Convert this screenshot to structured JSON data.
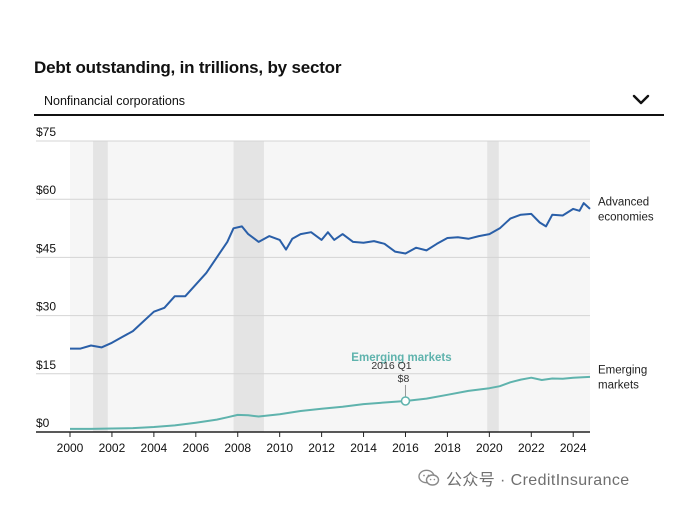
{
  "header": {
    "title": "Debt outstanding, in trillions, by sector",
    "selector_value": "Nonfinancial corporations"
  },
  "watermark": {
    "text": "公众号 · CreditInsurance"
  },
  "chart_data": {
    "type": "line",
    "title": "Debt outstanding, in trillions, by sector",
    "xlabel": "",
    "ylabel": "",
    "xlim": [
      2000,
      2024.8
    ],
    "ylim": [
      0,
      75
    ],
    "x_ticks": [
      "2000",
      "2002",
      "2004",
      "2006",
      "2008",
      "2010",
      "2012",
      "2014",
      "2016",
      "2018",
      "2020",
      "2022",
      "2024"
    ],
    "y_ticks": [
      {
        "value": 0,
        "label": "$0"
      },
      {
        "value": 15,
        "label": "$15"
      },
      {
        "value": 30,
        "label": "$30"
      },
      {
        "value": 45,
        "label": "$45"
      },
      {
        "value": 60,
        "label": "$60"
      },
      {
        "value": 75,
        "label": "$75"
      }
    ],
    "grid": true,
    "recession_bands": [
      [
        2001.1,
        2001.8
      ],
      [
        2007.8,
        2009.25
      ],
      [
        2019.9,
        2020.45
      ]
    ],
    "series": [
      {
        "name": "Advanced economies",
        "end_label": [
          "Advanced",
          "economies"
        ],
        "color": "#2a5fa8",
        "points": [
          [
            2000,
            21.5
          ],
          [
            2000.5,
            21.5
          ],
          [
            2001,
            22.3
          ],
          [
            2001.5,
            21.8
          ],
          [
            2002,
            23.0
          ],
          [
            2002.5,
            24.5
          ],
          [
            2003,
            26.0
          ],
          [
            2003.5,
            28.5
          ],
          [
            2004,
            31.0
          ],
          [
            2004.5,
            32.0
          ],
          [
            2005,
            35.0
          ],
          [
            2005.5,
            35.0
          ],
          [
            2006,
            38.0
          ],
          [
            2006.5,
            41.0
          ],
          [
            2007,
            45.0
          ],
          [
            2007.5,
            49.0
          ],
          [
            2007.8,
            52.5
          ],
          [
            2008.2,
            53.0
          ],
          [
            2008.5,
            51.0
          ],
          [
            2009,
            49.0
          ],
          [
            2009.5,
            50.5
          ],
          [
            2010,
            49.5
          ],
          [
            2010.3,
            47.0
          ],
          [
            2010.6,
            49.8
          ],
          [
            2011,
            51.0
          ],
          [
            2011.5,
            51.5
          ],
          [
            2012,
            49.5
          ],
          [
            2012.3,
            51.5
          ],
          [
            2012.6,
            49.5
          ],
          [
            2013,
            51.0
          ],
          [
            2013.5,
            49.0
          ],
          [
            2014,
            48.8
          ],
          [
            2014.5,
            49.2
          ],
          [
            2015,
            48.5
          ],
          [
            2015.5,
            46.5
          ],
          [
            2016,
            46.0
          ],
          [
            2016.5,
            47.5
          ],
          [
            2017,
            46.8
          ],
          [
            2017.5,
            48.5
          ],
          [
            2018,
            50.0
          ],
          [
            2018.5,
            50.2
          ],
          [
            2019,
            49.8
          ],
          [
            2019.5,
            50.5
          ],
          [
            2020,
            51.0
          ],
          [
            2020.5,
            52.5
          ],
          [
            2021,
            55.0
          ],
          [
            2021.5,
            56.0
          ],
          [
            2022,
            56.2
          ],
          [
            2022.4,
            54.0
          ],
          [
            2022.7,
            53.0
          ],
          [
            2023,
            56.0
          ],
          [
            2023.5,
            55.8
          ],
          [
            2024,
            57.5
          ],
          [
            2024.3,
            57.0
          ],
          [
            2024.5,
            59.0
          ],
          [
            2024.8,
            57.5
          ]
        ]
      },
      {
        "name": "Emerging markets",
        "end_label": [
          "Emerging",
          "markets"
        ],
        "inline_label": "Emerging markets",
        "color": "#5fb3ad",
        "points": [
          [
            2000,
            0.8
          ],
          [
            2001,
            0.8
          ],
          [
            2002,
            0.9
          ],
          [
            2003,
            1.0
          ],
          [
            2004,
            1.3
          ],
          [
            2005,
            1.7
          ],
          [
            2006,
            2.4
          ],
          [
            2007,
            3.2
          ],
          [
            2007.5,
            3.8
          ],
          [
            2008,
            4.4
          ],
          [
            2008.5,
            4.3
          ],
          [
            2009,
            4.0
          ],
          [
            2010,
            4.6
          ],
          [
            2011,
            5.4
          ],
          [
            2012,
            6.0
          ],
          [
            2013,
            6.5
          ],
          [
            2014,
            7.2
          ],
          [
            2015,
            7.6
          ],
          [
            2016,
            8.0
          ],
          [
            2017,
            8.6
          ],
          [
            2018,
            9.6
          ],
          [
            2019,
            10.6
          ],
          [
            2020,
            11.3
          ],
          [
            2020.5,
            11.8
          ],
          [
            2021,
            12.8
          ],
          [
            2021.5,
            13.5
          ],
          [
            2022,
            14.0
          ],
          [
            2022.5,
            13.4
          ],
          [
            2023,
            13.8
          ],
          [
            2023.5,
            13.7
          ],
          [
            2024,
            14.0
          ],
          [
            2024.8,
            14.2
          ]
        ]
      }
    ],
    "annotation": {
      "x": 2016,
      "y": 8,
      "period": "2016 Q1",
      "value": "$8"
    }
  }
}
